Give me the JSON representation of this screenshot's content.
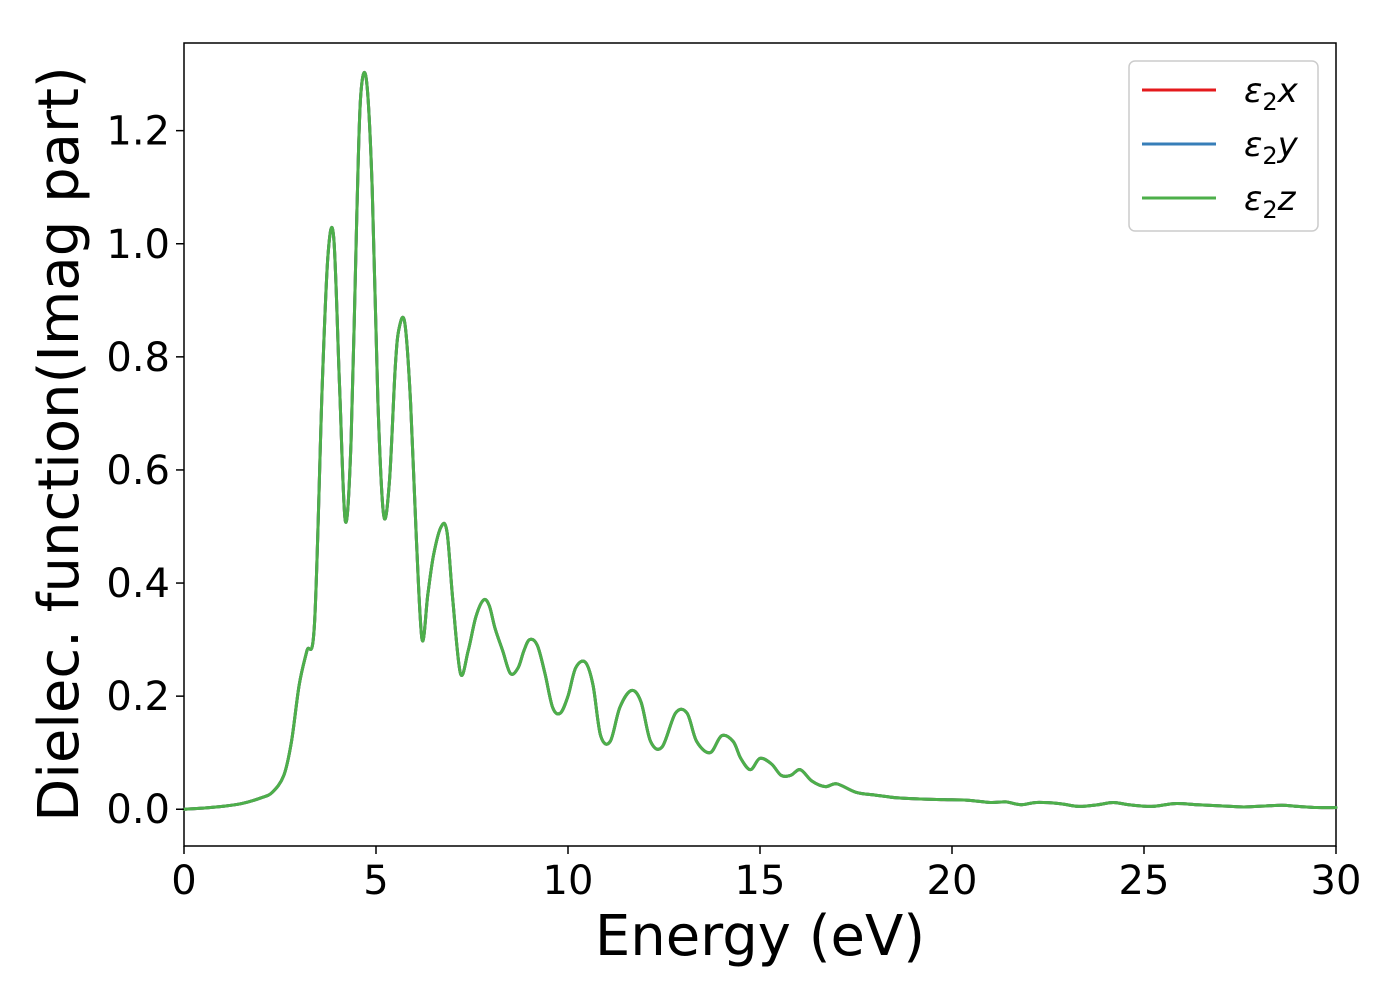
{
  "chart_data": {
    "type": "line",
    "xlabel": "Energy (eV)",
    "ylabel": "Dielec. function(Imag part)",
    "xlim": [
      0,
      30
    ],
    "ylim": [
      -0.065,
      1.355
    ],
    "xticks": [
      0,
      5,
      10,
      15,
      20,
      25,
      30
    ],
    "xtick_labels": [
      "0",
      "5",
      "10",
      "15",
      "20",
      "25",
      "30"
    ],
    "yticks": [
      0.0,
      0.2,
      0.4,
      0.6,
      0.8,
      1.0,
      1.2
    ],
    "ytick_labels": [
      "0.0",
      "0.2",
      "0.4",
      "0.6",
      "0.8",
      "1.0",
      "1.2"
    ],
    "grid": false,
    "legend_position": "top-right",
    "x": [
      0,
      0.5,
      1.0,
      1.5,
      2.0,
      2.3,
      2.6,
      2.8,
      3.0,
      3.2,
      3.4,
      3.6,
      3.75,
      3.9,
      4.05,
      4.2,
      4.35,
      4.5,
      4.6,
      4.75,
      4.9,
      5.05,
      5.2,
      5.35,
      5.5,
      5.6,
      5.75,
      5.9,
      6.05,
      6.2,
      6.35,
      6.5,
      6.7,
      6.85,
      7.0,
      7.2,
      7.4,
      7.6,
      7.8,
      7.95,
      8.1,
      8.3,
      8.5,
      8.7,
      8.85,
      9.0,
      9.2,
      9.4,
      9.6,
      9.8,
      10.0,
      10.2,
      10.45,
      10.65,
      10.85,
      11.1,
      11.35,
      11.65,
      11.9,
      12.15,
      12.45,
      12.8,
      13.1,
      13.35,
      13.7,
      14.0,
      14.3,
      14.5,
      14.75,
      15.0,
      15.3,
      15.55,
      15.8,
      16.05,
      16.35,
      16.7,
      17.0,
      17.5,
      18.0,
      18.6,
      19.2,
      19.8,
      20.4,
      21.0,
      21.4,
      21.8,
      22.2,
      22.8,
      23.3,
      23.8,
      24.2,
      24.6,
      25.2,
      25.8,
      26.4,
      27.0,
      27.6,
      28.2,
      28.6,
      29.0,
      29.5,
      30.0
    ],
    "series": [
      {
        "name": "ε₂x",
        "color": "#e41a1c",
        "values": [
          0.0,
          0.002,
          0.005,
          0.01,
          0.02,
          0.03,
          0.06,
          0.12,
          0.22,
          0.28,
          0.33,
          0.75,
          0.98,
          1.01,
          0.75,
          0.51,
          0.65,
          1.05,
          1.26,
          1.29,
          1.1,
          0.72,
          0.52,
          0.58,
          0.78,
          0.85,
          0.86,
          0.72,
          0.48,
          0.3,
          0.38,
          0.45,
          0.5,
          0.49,
          0.37,
          0.24,
          0.28,
          0.34,
          0.37,
          0.36,
          0.32,
          0.28,
          0.24,
          0.25,
          0.28,
          0.3,
          0.29,
          0.24,
          0.18,
          0.17,
          0.2,
          0.25,
          0.26,
          0.22,
          0.13,
          0.12,
          0.18,
          0.21,
          0.19,
          0.12,
          0.11,
          0.17,
          0.17,
          0.12,
          0.1,
          0.13,
          0.12,
          0.09,
          0.07,
          0.09,
          0.08,
          0.06,
          0.06,
          0.07,
          0.05,
          0.04,
          0.045,
          0.03,
          0.025,
          0.02,
          0.018,
          0.017,
          0.016,
          0.012,
          0.013,
          0.008,
          0.012,
          0.01,
          0.005,
          0.008,
          0.012,
          0.008,
          0.005,
          0.01,
          0.008,
          0.006,
          0.004,
          0.006,
          0.007,
          0.005,
          0.003,
          0.003
        ]
      },
      {
        "name": "ε₂y",
        "color": "#377eb8",
        "values": [
          0.0,
          0.002,
          0.005,
          0.01,
          0.02,
          0.03,
          0.06,
          0.12,
          0.22,
          0.28,
          0.33,
          0.75,
          0.98,
          1.01,
          0.75,
          0.51,
          0.65,
          1.05,
          1.26,
          1.29,
          1.1,
          0.72,
          0.52,
          0.58,
          0.78,
          0.85,
          0.86,
          0.72,
          0.48,
          0.3,
          0.38,
          0.45,
          0.5,
          0.49,
          0.37,
          0.24,
          0.28,
          0.34,
          0.37,
          0.36,
          0.32,
          0.28,
          0.24,
          0.25,
          0.28,
          0.3,
          0.29,
          0.24,
          0.18,
          0.17,
          0.2,
          0.25,
          0.26,
          0.22,
          0.13,
          0.12,
          0.18,
          0.21,
          0.19,
          0.12,
          0.11,
          0.17,
          0.17,
          0.12,
          0.1,
          0.13,
          0.12,
          0.09,
          0.07,
          0.09,
          0.08,
          0.06,
          0.06,
          0.07,
          0.05,
          0.04,
          0.045,
          0.03,
          0.025,
          0.02,
          0.018,
          0.017,
          0.016,
          0.012,
          0.013,
          0.008,
          0.012,
          0.01,
          0.005,
          0.008,
          0.012,
          0.008,
          0.005,
          0.01,
          0.008,
          0.006,
          0.004,
          0.006,
          0.007,
          0.005,
          0.003,
          0.003
        ]
      },
      {
        "name": "ε₂z",
        "color": "#4daf4a",
        "values": [
          0.0,
          0.002,
          0.005,
          0.01,
          0.02,
          0.03,
          0.06,
          0.12,
          0.22,
          0.28,
          0.33,
          0.75,
          0.98,
          1.01,
          0.75,
          0.51,
          0.65,
          1.05,
          1.26,
          1.29,
          1.1,
          0.72,
          0.52,
          0.58,
          0.78,
          0.85,
          0.86,
          0.72,
          0.48,
          0.3,
          0.38,
          0.45,
          0.5,
          0.49,
          0.37,
          0.24,
          0.28,
          0.34,
          0.37,
          0.36,
          0.32,
          0.28,
          0.24,
          0.25,
          0.28,
          0.3,
          0.29,
          0.24,
          0.18,
          0.17,
          0.2,
          0.25,
          0.26,
          0.22,
          0.13,
          0.12,
          0.18,
          0.21,
          0.19,
          0.12,
          0.11,
          0.17,
          0.17,
          0.12,
          0.1,
          0.13,
          0.12,
          0.09,
          0.07,
          0.09,
          0.08,
          0.06,
          0.06,
          0.07,
          0.05,
          0.04,
          0.045,
          0.03,
          0.025,
          0.02,
          0.018,
          0.017,
          0.016,
          0.012,
          0.013,
          0.008,
          0.012,
          0.01,
          0.005,
          0.008,
          0.012,
          0.008,
          0.005,
          0.01,
          0.008,
          0.006,
          0.004,
          0.006,
          0.007,
          0.005,
          0.003,
          0.003
        ]
      }
    ],
    "legend": {
      "entries": [
        {
          "symbol": "ε",
          "subscript": "2",
          "suffix": "x",
          "color": "#e41a1c"
        },
        {
          "symbol": "ε",
          "subscript": "2",
          "suffix": "y",
          "color": "#377eb8"
        },
        {
          "symbol": "ε",
          "subscript": "2",
          "suffix": "z",
          "color": "#4daf4a"
        }
      ]
    }
  }
}
